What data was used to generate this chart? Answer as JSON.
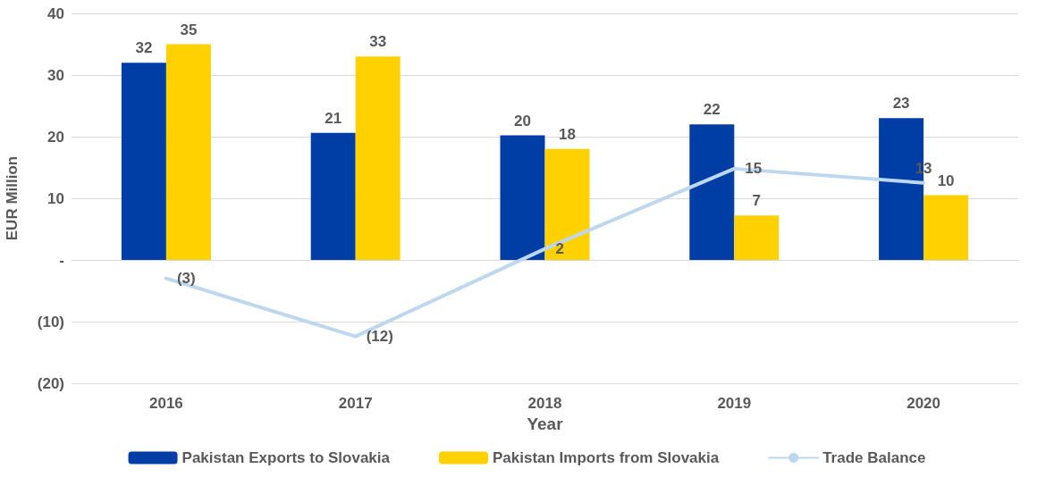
{
  "chart_data": {
    "type": "bar",
    "xlabel": "Year",
    "ylabel": "EUR Million",
    "categories": [
      "2016",
      "2017",
      "2018",
      "2019",
      "2020"
    ],
    "series": [
      {
        "name": "Pakistan Exports to Slovakia",
        "color": "#003da5",
        "values": [
          32,
          20.6,
          20.2,
          22,
          23
        ],
        "value_labels": [
          "32",
          "21",
          "20",
          "22",
          "23"
        ]
      },
      {
        "name": "Pakistan Imports from Slovakia",
        "color": "#ffd100",
        "values": [
          35,
          33,
          18,
          7.2,
          10.5
        ],
        "value_labels": [
          "35",
          "33",
          "18",
          "7",
          "10"
        ]
      },
      {
        "name": "Trade Balance",
        "type": "line",
        "color": "#bdd7ee",
        "values": [
          -3,
          -12.4,
          1.8,
          14.8,
          12.5
        ],
        "value_labels": [
          "(3)",
          "(12)",
          "2",
          "15",
          "13"
        ]
      }
    ],
    "ylim": [
      -20,
      40
    ],
    "yticks": [
      {
        "value": -20,
        "label": "(20)"
      },
      {
        "value": -10,
        "label": "(10)"
      },
      {
        "value": 0,
        "label": "-"
      },
      10,
      20,
      30,
      40
    ],
    "grid": "y",
    "legend": "bottom",
    "marker": "none",
    "line_style": "solid"
  }
}
